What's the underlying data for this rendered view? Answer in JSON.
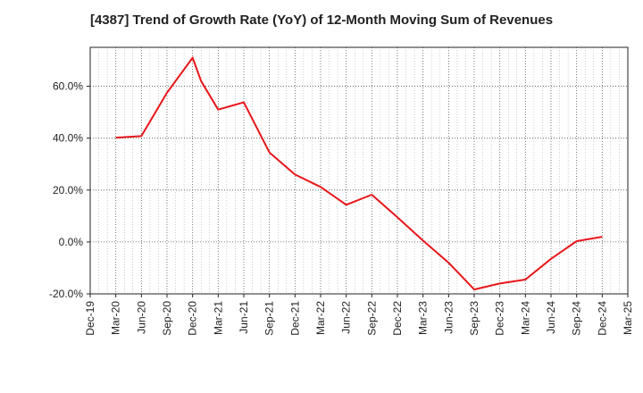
{
  "chart_data": {
    "type": "line",
    "title": "[4387]  Trend of Growth Rate (YoY) of 12-Month Moving Sum of Revenues",
    "xlabel": "",
    "ylabel": "",
    "x_ticks": [
      "Dec-19",
      "Mar-20",
      "Jun-20",
      "Sep-20",
      "Dec-20",
      "Mar-21",
      "Jun-21",
      "Sep-21",
      "Dec-21",
      "Mar-22",
      "Jun-22",
      "Sep-22",
      "Dec-22",
      "Mar-23",
      "Jun-23",
      "Sep-23",
      "Dec-23",
      "Mar-24",
      "Jun-24",
      "Sep-24",
      "Dec-24",
      "Mar-25"
    ],
    "y_ticks": [
      "-20.0%",
      "0.0%",
      "20.0%",
      "40.0%",
      "60.0%"
    ],
    "y_tick_values": [
      -20,
      0,
      20,
      40,
      60
    ],
    "ylim": [
      -20,
      75
    ],
    "grid": true,
    "line_color": "#e8161b",
    "series": [
      {
        "x": [
          "Mar-20",
          "Jun-20",
          "Sep-20",
          "Dec-20",
          "Jan-21",
          "Mar-21",
          "Jun-21",
          "Sep-21",
          "Dec-21",
          "Mar-22",
          "Jun-22",
          "Sep-22",
          "Dec-22",
          "Mar-23",
          "Jun-23",
          "Sep-23",
          "Dec-23",
          "Mar-24",
          "Jun-24",
          "Sep-24",
          "Dec-24"
        ],
        "values": [
          40.2,
          40.8,
          57.5,
          71.0,
          62.0,
          51.0,
          53.8,
          34.5,
          26.0,
          21.2,
          14.3,
          18.2,
          9.5,
          0.5,
          -8.0,
          -18.3,
          -16.0,
          -14.5,
          -6.5,
          0.3,
          2.0
        ]
      }
    ]
  }
}
